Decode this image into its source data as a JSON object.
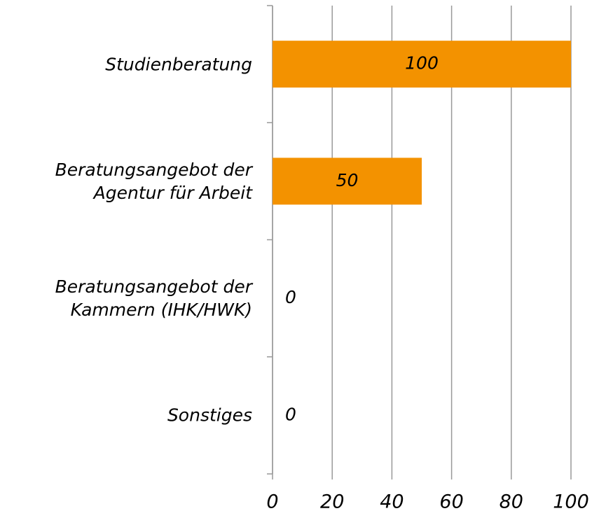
{
  "chart_data": {
    "type": "bar",
    "orientation": "horizontal",
    "categories": [
      "Studienberatung",
      "Beratungsangebot der\nAgentur für Arbeit",
      "Beratungsangebot der\nKammern (IHK/HWK)",
      "Sonstiges"
    ],
    "values": [
      100,
      50,
      0,
      0
    ],
    "color": "#f39200",
    "xlim": [
      0,
      100
    ],
    "xticks": [
      0,
      20,
      40,
      60,
      80,
      100
    ],
    "grid": true
  }
}
